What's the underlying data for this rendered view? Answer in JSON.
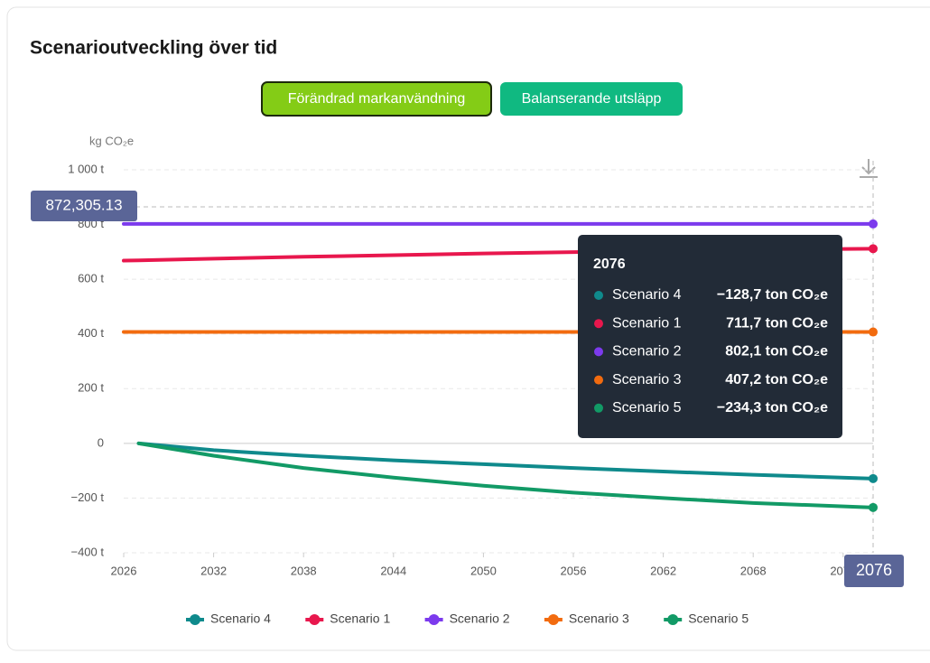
{
  "chart_data": {
    "type": "line",
    "title": "Scenarioutveckling över tid",
    "buttons": [
      "Förändrad markanvändning",
      "Balanserande utsläpp"
    ],
    "y_label": "kg CO₂e",
    "x": [
      2026,
      2027,
      2032,
      2038,
      2044,
      2050,
      2056,
      2062,
      2068,
      2076
    ],
    "series": [
      {
        "name": "Scenario 4",
        "color": "#0f8a8c",
        "values": [
          null,
          0,
          -25,
          -45,
          -62,
          -76,
          -90,
          -103,
          -115,
          -128.7
        ]
      },
      {
        "name": "Scenario 1",
        "color": "#e8174d",
        "values": [
          668,
          669,
          675,
          682,
          688,
          694,
          699,
          704,
          708,
          711.7
        ]
      },
      {
        "name": "Scenario 2",
        "color": "#7c3aed",
        "values": [
          802.1,
          802.1,
          802.1,
          802.1,
          802.1,
          802.1,
          802.1,
          802.1,
          802.1,
          802.1
        ]
      },
      {
        "name": "Scenario 3",
        "color": "#f26b0f",
        "values": [
          407.2,
          407.2,
          407.2,
          407.2,
          407.2,
          407.2,
          407.2,
          407.2,
          407.2,
          407.2
        ]
      },
      {
        "name": "Scenario 5",
        "color": "#129a66",
        "values": [
          null,
          0,
          -45,
          -90,
          -125,
          -155,
          -180,
          -200,
          -218,
          -234.3
        ]
      }
    ],
    "xlim": [
      2026,
      2076
    ],
    "xticks": [
      2026,
      2032,
      2038,
      2044,
      2050,
      2056,
      2062,
      2068,
      2074
    ],
    "ylim": [
      -400,
      1000
    ],
    "yticks": [
      {
        "value": -400,
        "label": "−400 t"
      },
      {
        "value": -200,
        "label": "−200 t"
      },
      {
        "value": 0,
        "label": "0"
      },
      {
        "value": 200,
        "label": "200 t"
      },
      {
        "value": 400,
        "label": "400 t"
      },
      {
        "value": 600,
        "label": "600 t"
      },
      {
        "value": 800,
        "label": "800 t"
      },
      {
        "value": 1000,
        "label": "1 000 t"
      }
    ],
    "grid": true,
    "cursor_x": 2076,
    "cursor_y_label": "872,305.13",
    "tooltip_values": [
      "−128,7 ton CO₂e",
      "711,7 ton CO₂e",
      "802,1 ton CO₂e",
      "407,2 ton CO₂e",
      "−234,3 ton CO₂e"
    ]
  }
}
